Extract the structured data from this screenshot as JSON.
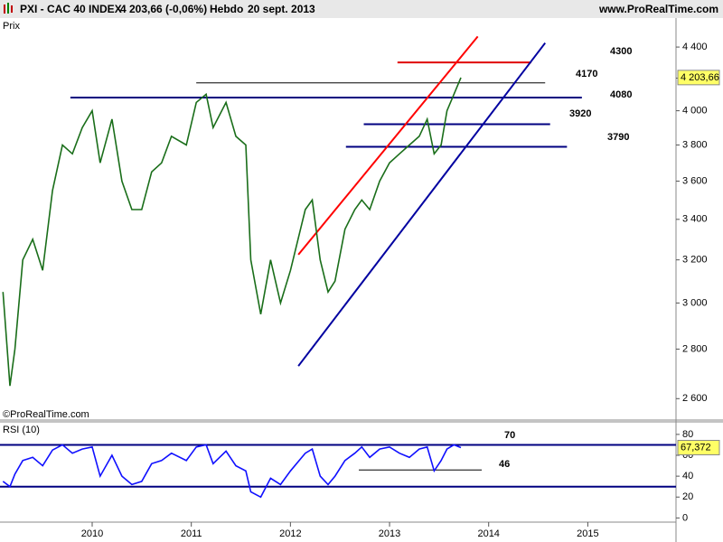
{
  "header": {
    "symbol": "PXI - CAC 40 INDEX",
    "quote": "4 203,66 (-0,06%)",
    "period": "Hebdo",
    "date": "20 sept. 2013",
    "site": "www.ProRealTime.com"
  },
  "chart_data": [
    {
      "type": "line",
      "title": "Prix",
      "watermark": "©ProRealTime.com",
      "log": true,
      "color": "#1a6e1a",
      "x": [
        2009.1,
        2009.17,
        2009.22,
        2009.3,
        2009.4,
        2009.5,
        2009.6,
        2009.7,
        2009.8,
        2009.9,
        2010.0,
        2010.08,
        2010.2,
        2010.3,
        2010.4,
        2010.5,
        2010.6,
        2010.7,
        2010.8,
        2010.95,
        2011.05,
        2011.15,
        2011.22,
        2011.35,
        2011.45,
        2011.55,
        2011.6,
        2011.7,
        2011.8,
        2011.9,
        2012.0,
        2012.15,
        2012.22,
        2012.3,
        2012.38,
        2012.45,
        2012.55,
        2012.65,
        2012.72,
        2012.8,
        2012.9,
        2013.0,
        2013.1,
        2013.2,
        2013.3,
        2013.38,
        2013.45,
        2013.52,
        2013.58,
        2013.65,
        2013.72
      ],
      "values": [
        3050,
        2650,
        2800,
        3200,
        3300,
        3150,
        3550,
        3800,
        3750,
        3900,
        4000,
        3700,
        3950,
        3600,
        3450,
        3450,
        3650,
        3700,
        3850,
        3800,
        4050,
        4100,
        3900,
        4050,
        3850,
        3800,
        3200,
        2950,
        3200,
        3000,
        3150,
        3450,
        3500,
        3200,
        3050,
        3100,
        3350,
        3450,
        3500,
        3450,
        3600,
        3700,
        3750,
        3800,
        3850,
        3950,
        3750,
        3800,
        4000,
        4100,
        4203.66
      ],
      "last": {
        "value": 4203.66,
        "label": "4 203,66"
      },
      "xlim": [
        2009.07,
        2015.89
      ],
      "ylim": [
        2518,
        4595
      ],
      "yticks": [
        {
          "value": 2600,
          "label": "2 600"
        },
        {
          "value": 2800,
          "label": "2 800"
        },
        {
          "value": 3000,
          "label": "3 000"
        },
        {
          "value": 3200,
          "label": "3 200"
        },
        {
          "value": 3400,
          "label": "3 400"
        },
        {
          "value": 3600,
          "label": "3 600"
        },
        {
          "value": 3800,
          "label": "3 800"
        },
        {
          "value": 4000,
          "label": "4 000"
        },
        {
          "value": 4200,
          "label": "4 200"
        },
        {
          "value": 4400,
          "label": "4 400"
        }
      ],
      "levels": [
        {
          "value": 4300,
          "x": [
            2013.08,
            2014.43
          ],
          "color": "#e00000"
        },
        {
          "value": 4170,
          "x": [
            2011.05,
            2014.57
          ],
          "color": "#000000"
        },
        {
          "value": 4080,
          "x": [
            2009.78,
            2014.94
          ],
          "color": "#000080"
        },
        {
          "value": 3920,
          "x": [
            2012.74,
            2014.62
          ],
          "color": "#000080"
        },
        {
          "value": 3790,
          "x": [
            2012.56,
            2014.79
          ],
          "color": "#000080"
        }
      ],
      "trendlines": [
        {
          "x": [
            2012.08,
            2013.89
          ],
          "y": [
            3225,
            4470
          ],
          "color": "#ff0000"
        },
        {
          "x": [
            2012.08,
            2014.57
          ],
          "y": [
            2730,
            4427
          ],
          "color": "#0000a0"
        }
      ]
    },
    {
      "type": "line",
      "title": "RSI (10)",
      "color": "#1010ff",
      "x": [
        2009.1,
        2009.17,
        2009.22,
        2009.3,
        2009.4,
        2009.5,
        2009.6,
        2009.7,
        2009.8,
        2009.9,
        2010.0,
        2010.08,
        2010.2,
        2010.3,
        2010.4,
        2010.5,
        2010.6,
        2010.7,
        2010.8,
        2010.95,
        2011.05,
        2011.15,
        2011.22,
        2011.35,
        2011.45,
        2011.55,
        2011.6,
        2011.7,
        2011.8,
        2011.9,
        2012.0,
        2012.15,
        2012.22,
        2012.3,
        2012.38,
        2012.45,
        2012.55,
        2012.65,
        2012.72,
        2012.8,
        2012.9,
        2013.0,
        2013.1,
        2013.2,
        2013.3,
        2013.38,
        2013.45,
        2013.52,
        2013.58,
        2013.65,
        2013.72
      ],
      "values": [
        35,
        30,
        42,
        55,
        58,
        50,
        65,
        70,
        62,
        66,
        68,
        40,
        60,
        40,
        32,
        35,
        52,
        55,
        62,
        55,
        68,
        70,
        52,
        64,
        50,
        45,
        25,
        20,
        38,
        32,
        45,
        62,
        66,
        40,
        32,
        40,
        55,
        62,
        68,
        58,
        66,
        68,
        62,
        58,
        66,
        68,
        45,
        55,
        66,
        70,
        67.372
      ],
      "last": {
        "value": 67.372,
        "label": "67,372"
      },
      "xlim": [
        2009.07,
        2015.89
      ],
      "ylim": [
        -4,
        92
      ],
      "yticks": [
        0,
        20,
        40,
        60,
        80
      ],
      "xticks": [
        2010,
        2011,
        2012,
        2013,
        2014,
        2015
      ],
      "levels": [
        {
          "value": 70,
          "x": [
            2009.07,
            2015.89
          ],
          "color": "#000080",
          "annotated": true
        },
        {
          "value": 30,
          "x": [
            2009.07,
            2015.89
          ],
          "color": "#000080",
          "annotated": false
        },
        {
          "value": 46,
          "x": [
            2012.69,
            2013.93
          ],
          "color": "#000000",
          "annotated": true
        }
      ]
    }
  ]
}
